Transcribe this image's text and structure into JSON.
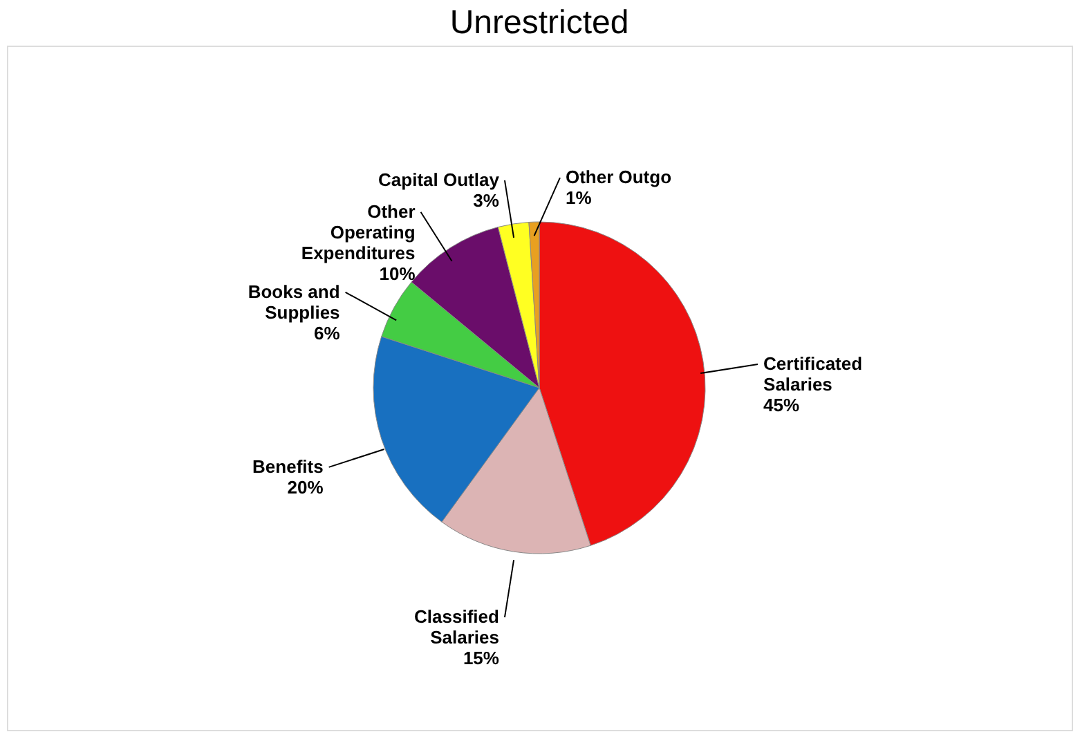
{
  "chart_data": {
    "type": "pie",
    "title": "Unrestricted",
    "categories": [
      "Certificated Salaries",
      "Classified Salaries",
      "Benefits",
      "Books and Supplies",
      "Other Operating Expenditures",
      "Capital Outlay",
      "Other Outgo"
    ],
    "values": [
      45,
      15,
      20,
      6,
      10,
      3,
      1
    ],
    "colors": [
      "#ee1111",
      "#dcb4b4",
      "#1870c0",
      "#44cc44",
      "#6a0d6a",
      "#ffff22",
      "#e8a020"
    ],
    "value_labels": [
      "45%",
      "15%",
      "20%",
      "6%",
      "10%",
      "3%",
      "1%"
    ],
    "legend": false
  }
}
